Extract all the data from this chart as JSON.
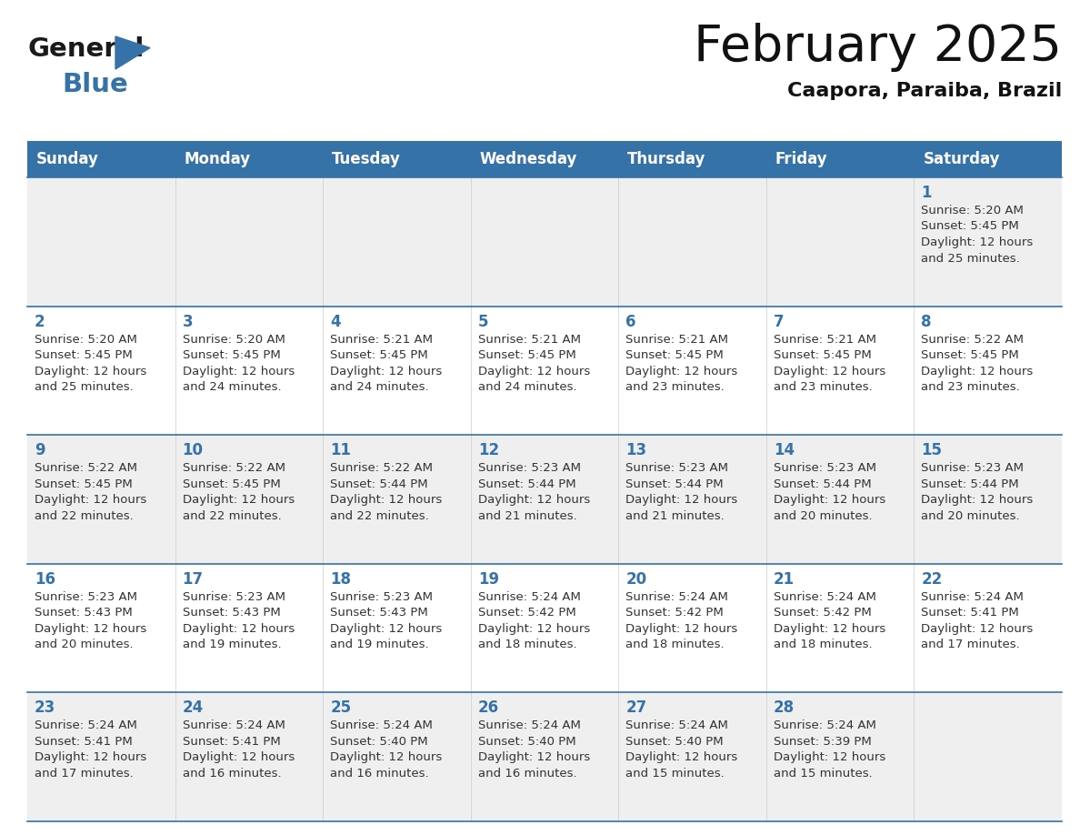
{
  "title": "February 2025",
  "subtitle": "Caapora, Paraiba, Brazil",
  "header_bg_color": "#3572a8",
  "header_text_color": "#ffffff",
  "days_of_week": [
    "Sunday",
    "Monday",
    "Tuesday",
    "Wednesday",
    "Thursday",
    "Friday",
    "Saturday"
  ],
  "background_color": "#ffffff",
  "cell_bg_even": "#efefef",
  "cell_bg_odd": "#ffffff",
  "day_number_color": "#3572a8",
  "info_text_color": "#333333",
  "separator_color": "#3572a8",
  "logo_text_color": "#1a1a1a",
  "logo_blue_color": "#3572a8",
  "calendar_data": [
    [
      {
        "day": null,
        "info": ""
      },
      {
        "day": null,
        "info": ""
      },
      {
        "day": null,
        "info": ""
      },
      {
        "day": null,
        "info": ""
      },
      {
        "day": null,
        "info": ""
      },
      {
        "day": null,
        "info": ""
      },
      {
        "day": 1,
        "info": "Sunrise: 5:20 AM\nSunset: 5:45 PM\nDaylight: 12 hours\nand 25 minutes."
      }
    ],
    [
      {
        "day": 2,
        "info": "Sunrise: 5:20 AM\nSunset: 5:45 PM\nDaylight: 12 hours\nand 25 minutes."
      },
      {
        "day": 3,
        "info": "Sunrise: 5:20 AM\nSunset: 5:45 PM\nDaylight: 12 hours\nand 24 minutes."
      },
      {
        "day": 4,
        "info": "Sunrise: 5:21 AM\nSunset: 5:45 PM\nDaylight: 12 hours\nand 24 minutes."
      },
      {
        "day": 5,
        "info": "Sunrise: 5:21 AM\nSunset: 5:45 PM\nDaylight: 12 hours\nand 24 minutes."
      },
      {
        "day": 6,
        "info": "Sunrise: 5:21 AM\nSunset: 5:45 PM\nDaylight: 12 hours\nand 23 minutes."
      },
      {
        "day": 7,
        "info": "Sunrise: 5:21 AM\nSunset: 5:45 PM\nDaylight: 12 hours\nand 23 minutes."
      },
      {
        "day": 8,
        "info": "Sunrise: 5:22 AM\nSunset: 5:45 PM\nDaylight: 12 hours\nand 23 minutes."
      }
    ],
    [
      {
        "day": 9,
        "info": "Sunrise: 5:22 AM\nSunset: 5:45 PM\nDaylight: 12 hours\nand 22 minutes."
      },
      {
        "day": 10,
        "info": "Sunrise: 5:22 AM\nSunset: 5:45 PM\nDaylight: 12 hours\nand 22 minutes."
      },
      {
        "day": 11,
        "info": "Sunrise: 5:22 AM\nSunset: 5:44 PM\nDaylight: 12 hours\nand 22 minutes."
      },
      {
        "day": 12,
        "info": "Sunrise: 5:23 AM\nSunset: 5:44 PM\nDaylight: 12 hours\nand 21 minutes."
      },
      {
        "day": 13,
        "info": "Sunrise: 5:23 AM\nSunset: 5:44 PM\nDaylight: 12 hours\nand 21 minutes."
      },
      {
        "day": 14,
        "info": "Sunrise: 5:23 AM\nSunset: 5:44 PM\nDaylight: 12 hours\nand 20 minutes."
      },
      {
        "day": 15,
        "info": "Sunrise: 5:23 AM\nSunset: 5:44 PM\nDaylight: 12 hours\nand 20 minutes."
      }
    ],
    [
      {
        "day": 16,
        "info": "Sunrise: 5:23 AM\nSunset: 5:43 PM\nDaylight: 12 hours\nand 20 minutes."
      },
      {
        "day": 17,
        "info": "Sunrise: 5:23 AM\nSunset: 5:43 PM\nDaylight: 12 hours\nand 19 minutes."
      },
      {
        "day": 18,
        "info": "Sunrise: 5:23 AM\nSunset: 5:43 PM\nDaylight: 12 hours\nand 19 minutes."
      },
      {
        "day": 19,
        "info": "Sunrise: 5:24 AM\nSunset: 5:42 PM\nDaylight: 12 hours\nand 18 minutes."
      },
      {
        "day": 20,
        "info": "Sunrise: 5:24 AM\nSunset: 5:42 PM\nDaylight: 12 hours\nand 18 minutes."
      },
      {
        "day": 21,
        "info": "Sunrise: 5:24 AM\nSunset: 5:42 PM\nDaylight: 12 hours\nand 18 minutes."
      },
      {
        "day": 22,
        "info": "Sunrise: 5:24 AM\nSunset: 5:41 PM\nDaylight: 12 hours\nand 17 minutes."
      }
    ],
    [
      {
        "day": 23,
        "info": "Sunrise: 5:24 AM\nSunset: 5:41 PM\nDaylight: 12 hours\nand 17 minutes."
      },
      {
        "day": 24,
        "info": "Sunrise: 5:24 AM\nSunset: 5:41 PM\nDaylight: 12 hours\nand 16 minutes."
      },
      {
        "day": 25,
        "info": "Sunrise: 5:24 AM\nSunset: 5:40 PM\nDaylight: 12 hours\nand 16 minutes."
      },
      {
        "day": 26,
        "info": "Sunrise: 5:24 AM\nSunset: 5:40 PM\nDaylight: 12 hours\nand 16 minutes."
      },
      {
        "day": 27,
        "info": "Sunrise: 5:24 AM\nSunset: 5:40 PM\nDaylight: 12 hours\nand 15 minutes."
      },
      {
        "day": 28,
        "info": "Sunrise: 5:24 AM\nSunset: 5:39 PM\nDaylight: 12 hours\nand 15 minutes."
      },
      {
        "day": null,
        "info": ""
      }
    ]
  ]
}
